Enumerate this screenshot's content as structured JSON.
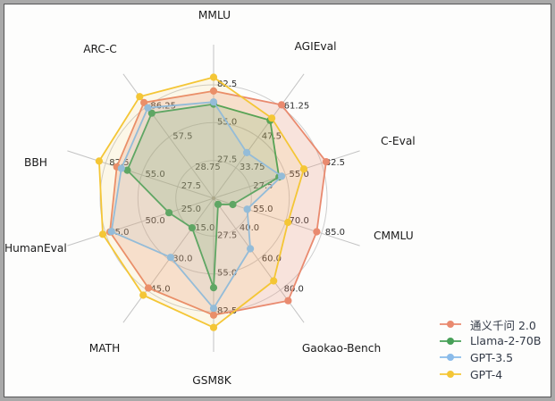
{
  "chart_data": {
    "type": "radar",
    "title": "",
    "grid": "circular",
    "legend_position": "lower-right",
    "categories": [
      "MMLU",
      "AGIEval",
      "C-Eval",
      "CMMLU",
      "Gaokao-Bench",
      "GSM8K",
      "MATH",
      "HumanEval",
      "BBH",
      "ARC-C"
    ],
    "axes": [
      {
        "label": "MMLU",
        "center": 0,
        "rings": [
          "27.5",
          "55.0",
          "82.5"
        ]
      },
      {
        "label": "AGIEval",
        "center": 20,
        "rings": [
          "33.75",
          "47.5",
          "61.25"
        ]
      },
      {
        "label": "C-Eval",
        "center": 0,
        "rings": [
          "27.5",
          "55.0",
          "82.5"
        ]
      },
      {
        "label": "CMMLU",
        "center": 40,
        "rings": [
          "55.0",
          "70.0",
          "85.0"
        ]
      },
      {
        "label": "Gaokao-Bench",
        "center": 20,
        "rings": [
          "40.0",
          "60.0",
          "80.0"
        ]
      },
      {
        "label": "GSM8K",
        "center": 0,
        "rings": [
          "27.5",
          "55.0",
          "82.5"
        ]
      },
      {
        "label": "MATH",
        "center": 0,
        "rings": [
          "15.0",
          "30.0",
          "45.0"
        ]
      },
      {
        "label": "HumanEval",
        "center": 0,
        "rings": [
          "25.0",
          "50.0",
          "75.0"
        ]
      },
      {
        "label": "BBH",
        "center": 0,
        "rings": [
          "27.5",
          "55.0",
          "82.5"
        ]
      },
      {
        "label": "ARC-C",
        "center": 0,
        "rings": [
          "28.75",
          "57.5",
          "86.25"
        ]
      }
    ],
    "series": [
      {
        "name": "通义千问 2.0",
        "color": "#e98a6f",
        "values": [
          78,
          62,
          86,
          83,
          87,
          85,
          44,
          72,
          74,
          90
        ]
      },
      {
        "name": "Llama-2-70B",
        "color": "#47a058",
        "values": [
          68.5,
          55,
          50,
          48,
          24,
          65,
          14.5,
          31,
          66,
          80
        ]
      },
      {
        "name": "GPT-3.5",
        "color": "#8abbea",
        "values": [
          70,
          40.5,
          52,
          54,
          53,
          80,
          29,
          71,
          70.5,
          85
        ]
      },
      {
        "name": "GPT-4",
        "color": "#f4c636",
        "values": [
          88,
          56,
          69,
          71,
          74,
          94,
          47.5,
          77,
          87.5,
          95.5
        ]
      }
    ]
  }
}
